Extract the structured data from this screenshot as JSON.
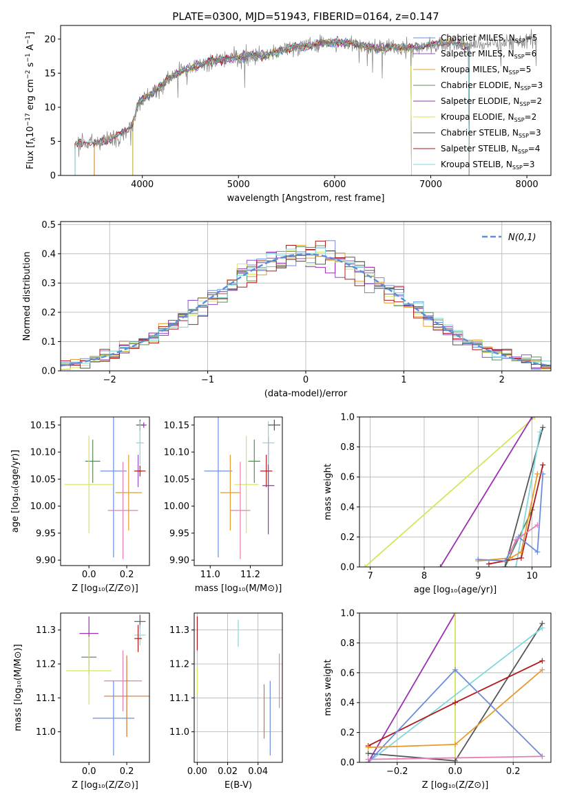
{
  "figure_title": "PLATE=0300, MJD=51943, FIBERID=0164, z=0.147",
  "colors": {
    "Chabrier MILES": "#6a8ce0",
    "Salpeter MILES": "#8c4fd0",
    "Kroupa MILES": "#e69a2a",
    "Chabrier ELODIE": "#5c8a5c",
    "Salpeter ELODIE": "#9a2fb0",
    "Kroupa ELODIE": "#d6e45a",
    "Chabrier STELIB": "#555555",
    "Salpeter STELIB": "#b01818",
    "Kroupa STELIB": "#7fd8dc",
    "data": "#808080",
    "normal": "#5b8fd9",
    "pink": "#e67fb0",
    "orange": "#e07020"
  },
  "chart_data": [
    {
      "id": "spectrum",
      "type": "line",
      "title": "PLATE=0300, MJD=51943, FIBERID=0164, z=0.147",
      "xlabel": "wavelength [Angstrom, rest frame]",
      "ylabel": "Flux [f_λ 10^-17 erg cm^-2 s^-1 A^-1]",
      "xlim": [
        3150,
        8250
      ],
      "ylim": [
        0,
        22
      ],
      "xticks": [
        4000,
        5000,
        6000,
        7000,
        8000
      ],
      "yticks": [
        0,
        5,
        10,
        15,
        20
      ],
      "grid": false,
      "legend_position": "top-right",
      "continuum_x": [
        3300,
        3400,
        3500,
        3650,
        3800,
        3900,
        3950,
        4000,
        4100,
        4200,
        4300,
        4400,
        4500,
        4600,
        4700,
        4800,
        4900,
        5000,
        5100,
        5200,
        5300,
        5400,
        5500,
        5600,
        5700,
        5800,
        5900,
        6000,
        6100,
        6200,
        6300,
        6400,
        6500,
        6600,
        6700,
        6800,
        6900,
        7000,
        7100,
        7200,
        7300,
        7400,
        7500,
        7600,
        7700,
        7800,
        7900,
        8000,
        8100
      ],
      "continuum_y": [
        4.6,
        4.9,
        4.6,
        5.3,
        6.2,
        7.6,
        10.3,
        11.2,
        12.0,
        13.2,
        14.5,
        15.2,
        15.6,
        16.2,
        16.7,
        17.0,
        17.1,
        17.3,
        17.6,
        17.6,
        17.7,
        18.1,
        18.6,
        18.9,
        18.9,
        19.2,
        19.6,
        19.5,
        19.4,
        19.5,
        19.0,
        18.7,
        18.6,
        18.9,
        18.8,
        18.7,
        18.9,
        19.2,
        19.4,
        19.5,
        19.2,
        19.0,
        19.2,
        19.4,
        19.4,
        19.5,
        19.6,
        19.8,
        19.9
      ],
      "series": [
        {
          "name": "Chabrier MILES",
          "n_ssp": 5,
          "range": [
            3500,
            7400
          ]
        },
        {
          "name": "Salpeter MILES",
          "n_ssp": 6,
          "range": [
            3500,
            7400
          ]
        },
        {
          "name": "Kroupa MILES",
          "n_ssp": 5,
          "range": [
            3500,
            7400
          ]
        },
        {
          "name": "Chabrier ELODIE",
          "n_ssp": 3,
          "range": [
            3900,
            6800
          ]
        },
        {
          "name": "Salpeter ELODIE",
          "n_ssp": 2,
          "range": [
            3900,
            6800
          ]
        },
        {
          "name": "Kroupa ELODIE",
          "n_ssp": 2,
          "range": [
            3900,
            6800
          ]
        },
        {
          "name": "Chabrier STELIB",
          "n_ssp": 3,
          "range": [
            3300,
            7400
          ]
        },
        {
          "name": "Salpeter STELIB",
          "n_ssp": 4,
          "range": [
            3300,
            7400
          ]
        },
        {
          "name": "Kroupa STELIB",
          "n_ssp": 3,
          "range": [
            3300,
            7400
          ]
        }
      ]
    },
    {
      "id": "residuals",
      "type": "line",
      "xlabel": "(data-model)/error",
      "ylabel": "Normed distribution",
      "xlim": [
        -2.5,
        2.5
      ],
      "ylim": [
        0,
        0.51
      ],
      "xticks": [
        -2,
        -1,
        0,
        1,
        2
      ],
      "yticks": [
        0.0,
        0.1,
        0.2,
        0.3,
        0.4,
        0.5
      ],
      "grid": true,
      "legend_position": "top-right",
      "bins": 50,
      "series_order": [
        "Chabrier MILES",
        "Salpeter MILES",
        "Kroupa MILES",
        "Chabrier ELODIE",
        "Salpeter ELODIE",
        "Kroupa ELODIE",
        "Chabrier STELIB",
        "Salpeter STELIB",
        "Kroupa STELIB"
      ],
      "normal_label": "N(0,1)"
    },
    {
      "id": "age_vs_Z",
      "type": "scatter",
      "xlabel": "Z [log10(Z/Z⊙)]",
      "ylabel": "age [log10(age/yr)]",
      "xlim": [
        -0.15,
        0.32
      ],
      "ylim": [
        9.89,
        10.165
      ],
      "xticks": [
        0.0,
        0.2
      ],
      "yticks": [
        9.9,
        9.95,
        10.0,
        10.05,
        10.1,
        10.15
      ],
      "grid": false,
      "points": [
        {
          "name": "Chabrier MILES",
          "x": 0.13,
          "y": 10.065,
          "xerr": 0.07,
          "yerr": 0.16
        },
        {
          "name": "Salpeter MILES",
          "x": 0.26,
          "y": 10.065,
          "xerr": 0.02,
          "yerr": 0.03
        },
        {
          "name": "Kroupa MILES",
          "x": 0.21,
          "y": 10.025,
          "xerr": 0.07,
          "yerr": 0.07
        },
        {
          "name": "Chabrier ELODIE",
          "x": 0.02,
          "y": 10.083,
          "xerr": 0.04,
          "yerr": 0.04
        },
        {
          "name": "Salpeter ELODIE",
          "x": 0.29,
          "y": 10.15,
          "xerr": 0.015,
          "yerr": 0.005
        },
        {
          "name": "Kroupa ELODIE",
          "x": 0.0,
          "y": 10.04,
          "xerr": 0.13,
          "yerr": 0.09
        },
        {
          "name": "Chabrier STELIB",
          "x": 0.27,
          "y": 10.15,
          "xerr": 0.02,
          "yerr": 0.01
        },
        {
          "name": "Salpeter STELIB",
          "x": 0.27,
          "y": 10.065,
          "xerr": 0.03,
          "yerr": 0.01
        },
        {
          "name": "Kroupa STELIB",
          "x": 0.27,
          "y": 10.117,
          "xerr": 0.02,
          "yerr": 0.04
        },
        {
          "name": "pink",
          "x": 0.18,
          "y": 9.992,
          "xerr": 0.08,
          "yerr": 0.09
        }
      ]
    },
    {
      "id": "age_vs_mass",
      "type": "scatter",
      "xlabel": "mass [log10(M/M⊙)]",
      "ylabel": "",
      "xlim": [
        10.92,
        11.36
      ],
      "ylim": [
        9.89,
        10.165
      ],
      "xticks": [
        11.0,
        11.2
      ],
      "yticks": [
        9.9,
        9.95,
        10.0,
        10.05,
        10.1,
        10.15
      ],
      "grid": false,
      "points": [
        {
          "name": "Chabrier MILES",
          "x": 11.04,
          "y": 10.065,
          "xerr": 0.07,
          "yerr": 0.16
        },
        {
          "name": "Kroupa MILES",
          "x": 11.1,
          "y": 10.025,
          "xerr": 0.05,
          "yerr": 0.07
        },
        {
          "name": "Kroupa ELODIE",
          "x": 11.18,
          "y": 10.04,
          "xerr": 0.06,
          "yerr": 0.09
        },
        {
          "name": "Chabrier ELODIE",
          "x": 11.22,
          "y": 10.083,
          "xerr": 0.03,
          "yerr": 0.04
        },
        {
          "name": "pink",
          "x": 11.15,
          "y": 9.992,
          "xerr": 0.05,
          "yerr": 0.09
        },
        {
          "name": "Salpeter STELIB",
          "x": 11.28,
          "y": 10.065,
          "xerr": 0.03,
          "yerr": 0.03
        },
        {
          "name": "Salpeter ELODIE",
          "x": 11.29,
          "y": 10.038,
          "xerr": 0.03,
          "yerr": 0.09
        },
        {
          "name": "Kroupa STELIB",
          "x": 11.29,
          "y": 10.117,
          "xerr": 0.03,
          "yerr": 0.04
        },
        {
          "name": "Chabrier STELIB",
          "x": 11.32,
          "y": 10.15,
          "xerr": 0.03,
          "yerr": 0.01
        }
      ]
    },
    {
      "id": "weight_vs_age",
      "type": "line",
      "xlabel": "age [log10(age/yr)]",
      "ylabel": "mass weight",
      "xlim": [
        6.8,
        10.35
      ],
      "ylim": [
        0,
        1.0
      ],
      "xticks": [
        7,
        8,
        9,
        10
      ],
      "yticks": [
        0.0,
        0.2,
        0.4,
        0.6,
        0.8,
        1.0
      ],
      "grid": true,
      "series": [
        {
          "name": "Kroupa ELODIE",
          "x": [
            6.9,
            10.05
          ],
          "y": [
            0.0,
            1.0
          ]
        },
        {
          "name": "Salpeter ELODIE",
          "x": [
            8.3,
            10.0
          ],
          "y": [
            0.0,
            1.0
          ]
        },
        {
          "name": "Chabrier ELODIE",
          "x": [
            9.5,
            10.0
          ],
          "y": [
            0.0,
            0.38
          ]
        },
        {
          "name": "Chabrier STELIB",
          "x": [
            9.5,
            10.2
          ],
          "y": [
            0.0,
            0.93
          ]
        },
        {
          "name": "Kroupa STELIB",
          "x": [
            9.7,
            10.15
          ],
          "y": [
            0.0,
            0.9
          ]
        },
        {
          "name": "Salpeter STELIB",
          "x": [
            9.2,
            9.8,
            10.2
          ],
          "y": [
            0.02,
            0.06,
            0.68
          ]
        },
        {
          "name": "Kroupa MILES",
          "x": [
            9.0,
            9.6,
            9.8,
            10.1
          ],
          "y": [
            0.04,
            0.06,
            0.1,
            0.62
          ]
        },
        {
          "name": "Chabrier MILES",
          "x": [
            9.0,
            9.5,
            9.75,
            10.1,
            10.2
          ],
          "y": [
            0.05,
            0.04,
            0.2,
            0.1,
            0.62
          ]
        },
        {
          "name": "pink",
          "x": [
            9.6,
            9.7,
            10.1
          ],
          "y": [
            0.1,
            0.18,
            0.28
          ]
        }
      ]
    },
    {
      "id": "mass_vs_Z",
      "type": "scatter",
      "xlabel": "Z [log10(Z/Z⊙)]",
      "ylabel": "mass [log10(M/M⊙)]",
      "xlim": [
        -0.15,
        0.32
      ],
      "ylim": [
        10.91,
        11.35
      ],
      "xticks": [
        0.0,
        0.2
      ],
      "yticks": [
        11.0,
        11.1,
        11.2,
        11.3
      ],
      "grid": false,
      "points": [
        {
          "name": "Salpeter ELODIE",
          "x": 0.0,
          "y": 11.29,
          "xerr": 0.05,
          "yerr": 0.05
        },
        {
          "name": "Chabrier ELODIE",
          "x": 0.0,
          "y": 11.22,
          "xerr": 0.04,
          "yerr": 0.05
        },
        {
          "name": "Kroupa ELODIE",
          "x": 0.0,
          "y": 11.18,
          "xerr": 0.12,
          "yerr": 0.1
        },
        {
          "name": "pink",
          "x": 0.18,
          "y": 11.15,
          "xerr": 0.1,
          "yerr": 0.09
        },
        {
          "name": "orange",
          "x": 0.2,
          "y": 11.105,
          "xerr": 0.12,
          "yerr": 0.12
        },
        {
          "name": "Chabrier MILES",
          "x": 0.13,
          "y": 11.04,
          "xerr": 0.11,
          "yerr": 0.11
        },
        {
          "name": "Chabrier STELIB",
          "x": 0.27,
          "y": 11.325,
          "xerr": 0.03,
          "yerr": 0.02
        },
        {
          "name": "Kroupa STELIB",
          "x": 0.27,
          "y": 11.285,
          "xerr": 0.03,
          "yerr": 0.03
        },
        {
          "name": "Salpeter STELIB",
          "x": 0.26,
          "y": 11.275,
          "xerr": 0.02,
          "yerr": 0.04
        }
      ]
    },
    {
      "id": "mass_vs_ebv",
      "type": "scatter",
      "xlabel": "E(B-V)",
      "ylabel": "",
      "xlim": [
        -0.002,
        0.056
      ],
      "ylim": [
        10.91,
        11.35
      ],
      "xticks": [
        0.0,
        0.02,
        0.04
      ],
      "yticks": [
        11.0,
        11.1,
        11.2,
        11.3
      ],
      "grid": true,
      "points": [
        {
          "name": "Salpeter STELIB",
          "x": 0.0,
          "y": 11.29,
          "xerr": 0.0,
          "yerr": 0.05
        },
        {
          "name": "Kroupa ELODIE",
          "x": 0.0,
          "y": 11.15,
          "xerr": 0.0,
          "yerr": 0.04
        },
        {
          "name": "Kroupa STELIB",
          "x": 0.027,
          "y": 11.29,
          "xerr": 0.0,
          "yerr": 0.04
        },
        {
          "name": "orange",
          "x": 0.044,
          "y": 11.06,
          "xerr": 0.0,
          "yerr": 0.08
        },
        {
          "name": "Chabrier MILES",
          "x": 0.048,
          "y": 11.04,
          "xerr": 0.0,
          "yerr": 0.11
        },
        {
          "name": "pink",
          "x": 0.054,
          "y": 11.15,
          "xerr": 0.0,
          "yerr": 0.08
        }
      ]
    },
    {
      "id": "weight_vs_Z",
      "type": "line",
      "xlabel": "Z [log10(Z/Z⊙)]",
      "ylabel": "mass weight",
      "xlim": [
        -0.33,
        0.33
      ],
      "ylim": [
        0,
        1.0
      ],
      "xticks": [
        -0.2,
        0.0,
        0.2
      ],
      "yticks": [
        0.0,
        0.2,
        0.4,
        0.6,
        0.8,
        1.0
      ],
      "grid": true,
      "series": [
        {
          "name": "Salpeter ELODIE",
          "x": [
            -0.3,
            0.0
          ],
          "y": [
            0.0,
            1.0
          ]
        },
        {
          "name": "Kroupa ELODIE",
          "x": [
            0.0,
            0.0
          ],
          "y": [
            0.0,
            1.0
          ]
        },
        {
          "name": "Chabrier STELIB",
          "x": [
            -0.3,
            0.0,
            0.3
          ],
          "y": [
            0.06,
            0.01,
            0.93
          ]
        },
        {
          "name": "Kroupa STELIB",
          "x": [
            -0.3,
            0.3
          ],
          "y": [
            0.0,
            0.9
          ]
        },
        {
          "name": "Salpeter STELIB",
          "x": [
            -0.3,
            0.0,
            0.3
          ],
          "y": [
            0.11,
            0.4,
            0.68
          ]
        },
        {
          "name": "Chabrier MILES",
          "x": [
            -0.3,
            0.0,
            0.3
          ],
          "y": [
            0.0,
            0.62,
            0.04
          ]
        },
        {
          "name": "Kroupa MILES",
          "x": [
            -0.3,
            0.0,
            0.3
          ],
          "y": [
            0.1,
            0.12,
            0.62
          ]
        },
        {
          "name": "pink",
          "x": [
            -0.3,
            0.3
          ],
          "y": [
            0.02,
            0.04
          ]
        }
      ]
    }
  ]
}
